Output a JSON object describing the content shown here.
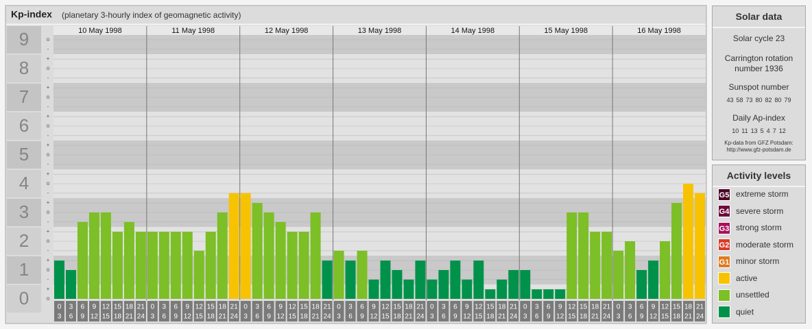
{
  "chart_data": {
    "type": "bar",
    "title": "Kp-index",
    "subtitle": "(planetary 3-hourly index of geomagnetic activity)",
    "ylim": [
      0,
      9
    ],
    "yticks": [
      0,
      1,
      2,
      3,
      4,
      5,
      6,
      7,
      8,
      9
    ],
    "minor_yticks": [
      {
        "value": 0,
        "label": "o"
      },
      {
        "value": 0.33,
        "label": "+"
      },
      {
        "value": 0.67,
        "label": "-"
      },
      {
        "value": 1,
        "label": "o"
      },
      {
        "value": 1.33,
        "label": "+"
      },
      {
        "value": 1.67,
        "label": "-"
      },
      {
        "value": 2,
        "label": "o"
      },
      {
        "value": 2.33,
        "label": "+"
      },
      {
        "value": 2.67,
        "label": "-"
      },
      {
        "value": 3,
        "label": "o"
      },
      {
        "value": 3.33,
        "label": "+"
      },
      {
        "value": 3.67,
        "label": "-"
      },
      {
        "value": 4,
        "label": "o"
      },
      {
        "value": 4.33,
        "label": "+"
      },
      {
        "value": 4.67,
        "label": "-"
      },
      {
        "value": 5,
        "label": "o"
      },
      {
        "value": 5.33,
        "label": "+"
      },
      {
        "value": 5.67,
        "label": "-"
      },
      {
        "value": 6,
        "label": "o"
      },
      {
        "value": 6.33,
        "label": "+"
      },
      {
        "value": 6.67,
        "label": "-"
      },
      {
        "value": 7,
        "label": "o"
      },
      {
        "value": 7.33,
        "label": "+"
      },
      {
        "value": 7.67,
        "label": "-"
      },
      {
        "value": 8,
        "label": "o"
      },
      {
        "value": 8.33,
        "label": "+"
      },
      {
        "value": 8.67,
        "label": "-"
      },
      {
        "value": 9,
        "label": "o"
      }
    ],
    "hour_labels": [
      [
        "0",
        "3"
      ],
      [
        "3",
        "6"
      ],
      [
        "6",
        "9"
      ],
      [
        "9",
        "12"
      ],
      [
        "12",
        "15"
      ],
      [
        "15",
        "18"
      ],
      [
        "18",
        "21"
      ],
      [
        "21",
        "24"
      ]
    ],
    "days": [
      {
        "date": "10 May 1998",
        "values": [
          1.33,
          1,
          2.67,
          3,
          3,
          2.33,
          2.67,
          2.33
        ],
        "colors": [
          "#00924a",
          "#00924a",
          "#7cbf26",
          "#7cbf26",
          "#7cbf26",
          "#7cbf26",
          "#7cbf26",
          "#7cbf26"
        ]
      },
      {
        "date": "11 May 1998",
        "values": [
          2.33,
          2.33,
          2.33,
          2.33,
          1.67,
          2.33,
          3,
          3.67
        ],
        "colors": [
          "#7cbf26",
          "#7cbf26",
          "#7cbf26",
          "#7cbf26",
          "#7cbf26",
          "#7cbf26",
          "#7cbf26",
          "#f7c300"
        ]
      },
      {
        "date": "12 May 1998",
        "values": [
          3.67,
          3.33,
          3,
          2.67,
          2.33,
          2.33,
          3,
          1.33
        ],
        "colors": [
          "#f7c300",
          "#7cbf26",
          "#7cbf26",
          "#7cbf26",
          "#7cbf26",
          "#7cbf26",
          "#7cbf26",
          "#00924a"
        ]
      },
      {
        "date": "13 May 1998",
        "values": [
          1.67,
          1.33,
          1.67,
          0.67,
          1.33,
          1,
          0.67,
          1.33
        ],
        "colors": [
          "#7cbf26",
          "#00924a",
          "#7cbf26",
          "#00924a",
          "#00924a",
          "#00924a",
          "#00924a",
          "#00924a"
        ]
      },
      {
        "date": "14 May 1998",
        "values": [
          0.67,
          1,
          1.33,
          0.67,
          1.33,
          0.33,
          0.67,
          1
        ],
        "colors": [
          "#00924a",
          "#00924a",
          "#00924a",
          "#00924a",
          "#00924a",
          "#00924a",
          "#00924a",
          "#00924a"
        ]
      },
      {
        "date": "15 May 1998",
        "values": [
          1,
          0.33,
          0.33,
          0.33,
          3,
          3,
          2.33,
          2.33
        ],
        "colors": [
          "#00924a",
          "#00924a",
          "#00924a",
          "#00924a",
          "#7cbf26",
          "#7cbf26",
          "#7cbf26",
          "#7cbf26"
        ]
      },
      {
        "date": "16 May 1998",
        "values": [
          1.67,
          2,
          1,
          1.33,
          2,
          3.33,
          4,
          3.67
        ],
        "colors": [
          "#7cbf26",
          "#7cbf26",
          "#00924a",
          "#00924a",
          "#7cbf26",
          "#7cbf26",
          "#f7c300",
          "#f7c300"
        ]
      }
    ],
    "solar_data": {
      "title": "Solar data",
      "cycle": "Solar cycle 23",
      "carrington": "Carrington rotation number 1936",
      "sunspot_title": "Sunspot number",
      "sunspot_numbers": [
        43,
        58,
        73,
        80,
        82,
        80,
        79
      ],
      "ap_title": "Daily Ap-index",
      "ap_index": [
        10,
        11,
        13,
        5,
        4,
        7,
        12
      ],
      "source_line1": "Kp-data from GFZ Potsdam:",
      "source_line2": "http://www.gfz-potsdam.de"
    },
    "activity_levels": {
      "title": "Activity levels",
      "items": [
        {
          "badge": "G5",
          "name": "extreme storm",
          "color": "#4d0026"
        },
        {
          "badge": "G4",
          "name": "severe storm",
          "color": "#6e0a3c"
        },
        {
          "badge": "G3",
          "name": "strong storm",
          "color": "#a8125a"
        },
        {
          "badge": "G2",
          "name": "moderate storm",
          "color": "#d83c28"
        },
        {
          "badge": "G1",
          "name": "minor storm",
          "color": "#e07a20"
        },
        {
          "name": "active",
          "color": "#f7c300"
        },
        {
          "name": "unsettled",
          "color": "#7cbf26"
        },
        {
          "name": "quiet",
          "color": "#00924a"
        }
      ]
    }
  }
}
